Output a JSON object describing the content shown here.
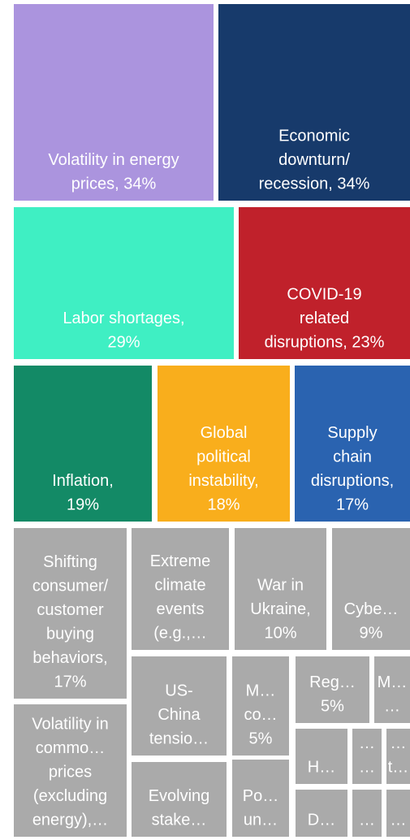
{
  "chart_data": {
    "type": "treemap",
    "labels": [
      [
        "Volatility in energy",
        "prices, 34%"
      ],
      [
        "Economic",
        "downturn/",
        "recession, 34%"
      ],
      [
        "Labor shortages,",
        "29%"
      ],
      [
        "COVID-19",
        "related",
        "disruptions, 23%"
      ],
      [
        "Inflation,",
        "19%"
      ],
      [
        "Global",
        "political",
        "instability,",
        "18%"
      ],
      [
        "Supply",
        "chain",
        "disruptions,",
        "17%"
      ],
      [
        "Shifting",
        "consumer/",
        "customer",
        "buying",
        "behaviors,",
        "17%"
      ],
      [
        "Volatility in",
        "commo…",
        "prices",
        "(excluding",
        "energy),…"
      ],
      [
        "Extreme",
        "climate",
        "events",
        "(e.g.,…"
      ],
      [
        "US-",
        "China",
        "tensio…"
      ],
      [
        "Evolving",
        "stake…"
      ],
      [
        "War in",
        "Ukraine,",
        "10%"
      ],
      [
        "Cybe…",
        "9%"
      ],
      [
        "M…",
        "co…",
        "5%"
      ],
      [
        "Po…",
        "un…"
      ],
      [
        "Reg…",
        "5%"
      ],
      [
        "M…",
        "…"
      ],
      [
        "H…"
      ],
      [
        "D…"
      ],
      [
        "…",
        "…"
      ],
      [
        "…",
        "t…"
      ],
      [
        "…"
      ],
      [
        "…"
      ]
    ],
    "values": [
      34,
      34,
      29,
      23,
      19,
      18,
      17,
      17,
      13,
      11,
      8,
      6,
      10,
      9,
      5,
      4,
      5,
      3,
      3,
      2,
      2,
      2,
      1,
      1
    ],
    "colors": [
      "#ab94de",
      "#173a6b",
      "#3fefc3",
      "#c0212b",
      "#138a66",
      "#f9ae1c",
      "#2a63b0",
      "#aaaaaa",
      "#aaaaaa",
      "#aaaaaa",
      "#aaaaaa",
      "#aaaaaa",
      "#aaaaaa",
      "#aaaaaa",
      "#aaaaaa",
      "#aaaaaa",
      "#aaaaaa",
      "#aaaaaa",
      "#aaaaaa",
      "#aaaaaa",
      "#aaaaaa",
      "#aaaaaa",
      "#aaaaaa",
      "#aaaaaa"
    ]
  }
}
